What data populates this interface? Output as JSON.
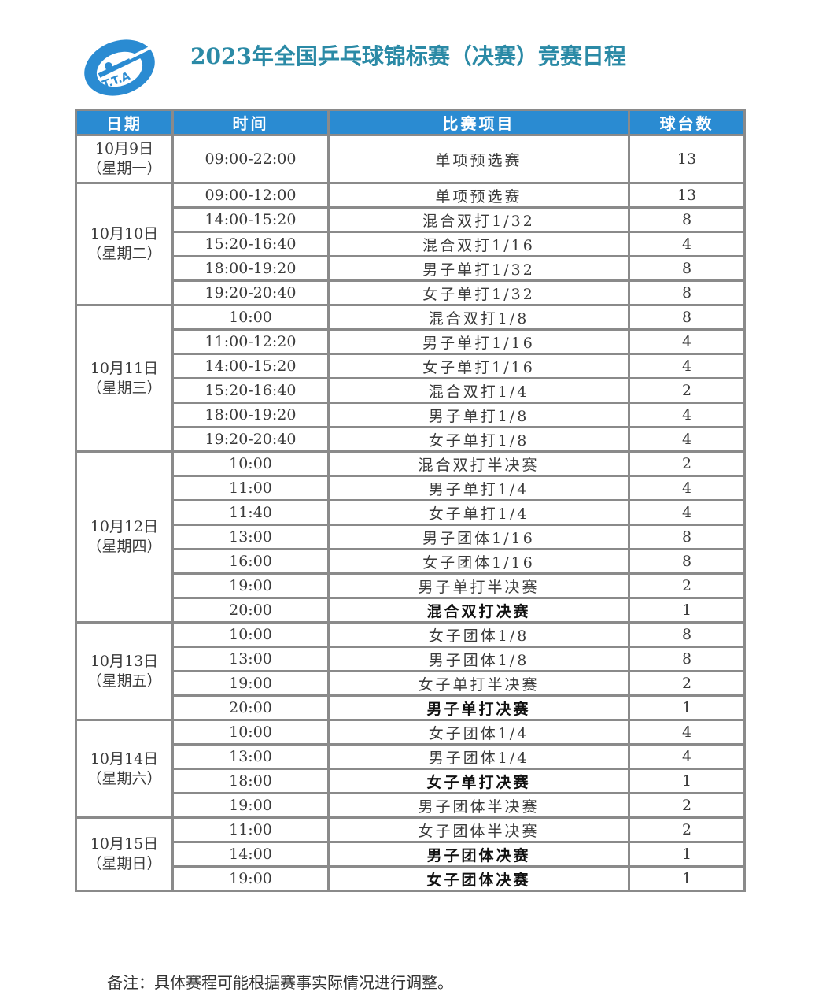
{
  "header": {
    "title": "2023年全国乒乓球锦标赛（决赛）竞赛日程",
    "logo_text": "T.T.A",
    "accent_color": "#2a8bd2",
    "title_color": "#2b8aa6"
  },
  "table": {
    "columns": [
      "日期",
      "时间",
      "比赛项目",
      "球台数"
    ],
    "days": [
      {
        "date": "10月9日",
        "weekday": "（星期一）",
        "rows": [
          {
            "time": "09:00-22:00",
            "event": "单项预选赛",
            "tables": "13",
            "bold": false
          }
        ]
      },
      {
        "date": "10月10日",
        "weekday": "（星期二）",
        "rows": [
          {
            "time": "09:00-12:00",
            "event": "单项预选赛",
            "tables": "13",
            "bold": false
          },
          {
            "time": "14:00-15:20",
            "event": "混合双打1/32",
            "tables": "8",
            "bold": false
          },
          {
            "time": "15:20-16:40",
            "event": "混合双打1/16",
            "tables": "4",
            "bold": false
          },
          {
            "time": "18:00-19:20",
            "event": "男子单打1/32",
            "tables": "8",
            "bold": false
          },
          {
            "time": "19:20-20:40",
            "event": "女子单打1/32",
            "tables": "8",
            "bold": false
          }
        ]
      },
      {
        "date": "10月11日",
        "weekday": "（星期三）",
        "rows": [
          {
            "time": "10:00",
            "event": "混合双打1/8",
            "tables": "8",
            "bold": false
          },
          {
            "time": "11:00-12:20",
            "event": "男子单打1/16",
            "tables": "4",
            "bold": false
          },
          {
            "time": "14:00-15:20",
            "event": "女子单打1/16",
            "tables": "4",
            "bold": false
          },
          {
            "time": "15:20-16:40",
            "event": "混合双打1/4",
            "tables": "2",
            "bold": false
          },
          {
            "time": "18:00-19:20",
            "event": "男子单打1/8",
            "tables": "4",
            "bold": false
          },
          {
            "time": "19:20-20:40",
            "event": "女子单打1/8",
            "tables": "4",
            "bold": false
          }
        ]
      },
      {
        "date": "10月12日",
        "weekday": "（星期四）",
        "rows": [
          {
            "time": "10:00",
            "event": "混合双打半决赛",
            "tables": "2",
            "bold": false
          },
          {
            "time": "11:00",
            "event": "男子单打1/4",
            "tables": "4",
            "bold": false
          },
          {
            "time": "11:40",
            "event": "女子单打1/4",
            "tables": "4",
            "bold": false
          },
          {
            "time": "13:00",
            "event": "男子团体1/16",
            "tables": "8",
            "bold": false
          },
          {
            "time": "16:00",
            "event": "女子团体1/16",
            "tables": "8",
            "bold": false
          },
          {
            "time": "19:00",
            "event": "男子单打半决赛",
            "tables": "2",
            "bold": false
          },
          {
            "time": "20:00",
            "event": "混合双打决赛",
            "tables": "1",
            "bold": true
          }
        ]
      },
      {
        "date": "10月13日",
        "weekday": "（星期五）",
        "rows": [
          {
            "time": "10:00",
            "event": "女子团体1/8",
            "tables": "8",
            "bold": false
          },
          {
            "time": "13:00",
            "event": "男子团体1/8",
            "tables": "8",
            "bold": false
          },
          {
            "time": "19:00",
            "event": "女子单打半决赛",
            "tables": "2",
            "bold": false
          },
          {
            "time": "20:00",
            "event": "男子单打决赛",
            "tables": "1",
            "bold": true
          }
        ]
      },
      {
        "date": "10月14日",
        "weekday": "（星期六）",
        "rows": [
          {
            "time": "10:00",
            "event": "女子团体1/4",
            "tables": "4",
            "bold": false
          },
          {
            "time": "13:00",
            "event": "男子团体1/4",
            "tables": "4",
            "bold": false
          },
          {
            "time": "18:00",
            "event": "女子单打决赛",
            "tables": "1",
            "bold": true
          },
          {
            "time": "19:00",
            "event": "男子团体半决赛",
            "tables": "2",
            "bold": false
          }
        ]
      },
      {
        "date": "10月15日",
        "weekday": "（星期日）",
        "rows": [
          {
            "time": "11:00",
            "event": "女子团体半决赛",
            "tables": "2",
            "bold": false
          },
          {
            "time": "14:00",
            "event": "男子团体决赛",
            "tables": "1",
            "bold": true
          },
          {
            "time": "19:00",
            "event": "女子团体决赛",
            "tables": "1",
            "bold": true
          }
        ]
      }
    ]
  },
  "footer": {
    "note": "备注：具体赛程可能根据赛事实际情况进行调整。"
  }
}
